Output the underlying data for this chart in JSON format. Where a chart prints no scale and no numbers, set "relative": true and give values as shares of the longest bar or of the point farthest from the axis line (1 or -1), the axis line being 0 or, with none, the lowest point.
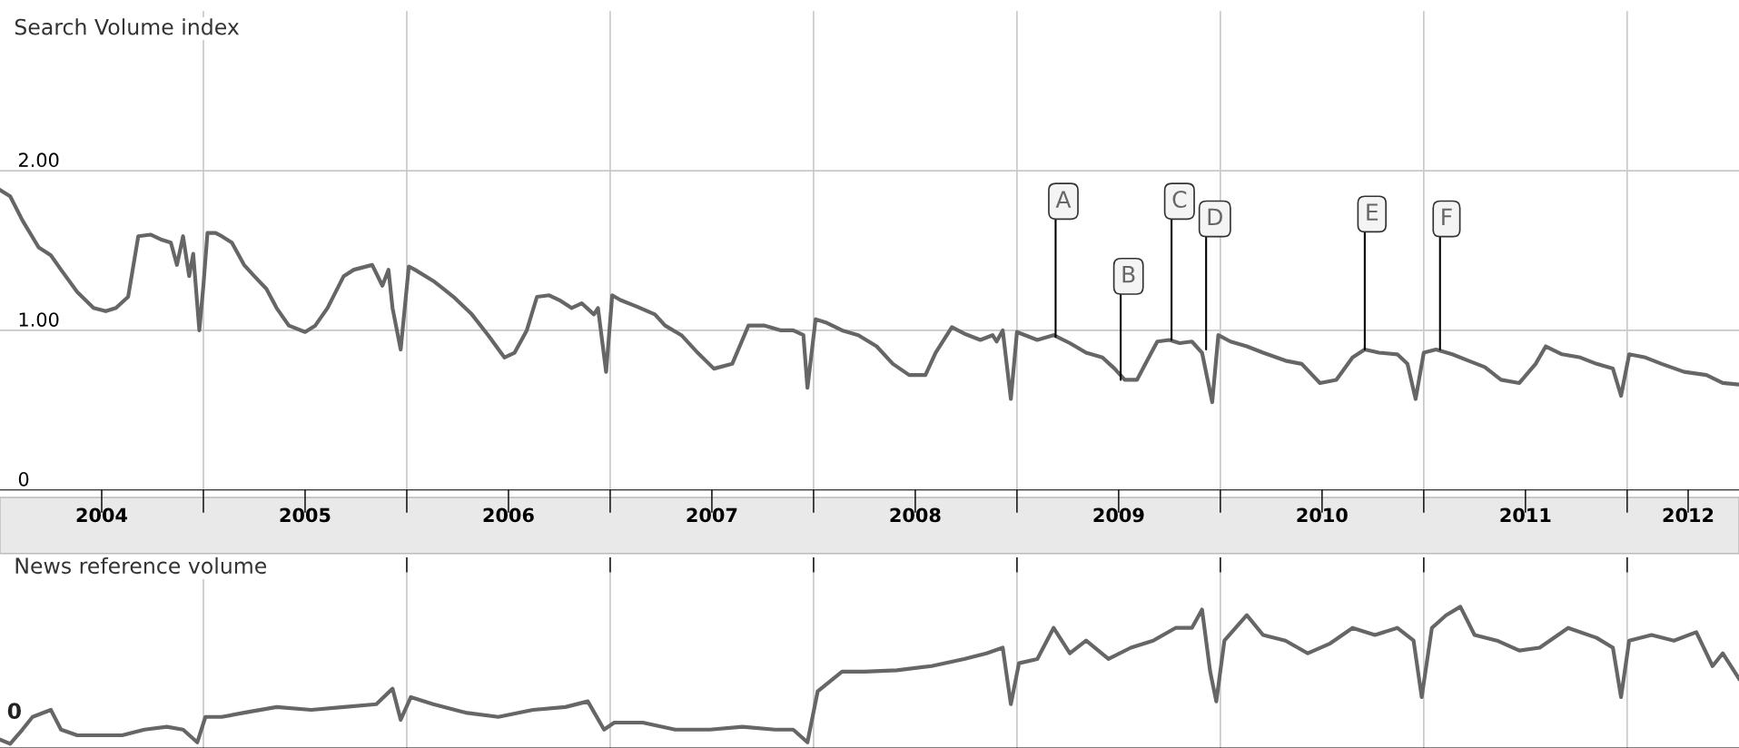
{
  "chart_data": [
    {
      "type": "line",
      "ylabel": "Search Volume index",
      "xlim": [
        2004,
        2012.55
      ],
      "ylim": [
        0,
        3.0
      ],
      "yticks": [
        0,
        {
          "value": 1,
          "label": "1.00"
        },
        {
          "value": 2,
          "label": "2.00"
        }
      ],
      "xticks": [
        {
          "value": 2004.5,
          "label": "2004"
        },
        {
          "value": 2005,
          "label": null
        },
        {
          "value": 2005.5,
          "label": "2005"
        },
        {
          "value": 2006,
          "label": null
        },
        {
          "value": 2006.5,
          "label": "2006"
        },
        {
          "value": 2007,
          "label": null
        },
        {
          "value": 2007.5,
          "label": "2007"
        },
        {
          "value": 2008,
          "label": null
        },
        {
          "value": 2008.5,
          "label": "2008"
        },
        {
          "value": 2009,
          "label": null
        },
        {
          "value": 2009.5,
          "label": "2009"
        },
        {
          "value": 2010,
          "label": null
        },
        {
          "value": 2010.5,
          "label": "2010"
        },
        {
          "value": 2011,
          "label": null
        },
        {
          "value": 2011.5,
          "label": "2011"
        },
        {
          "value": 2012,
          "label": null
        },
        {
          "value": 2012.3,
          "label": "2012"
        }
      ],
      "grid": true,
      "legend": false,
      "marker": "none",
      "line_style": "solid",
      "annotations": [
        {
          "text": "A",
          "x": 2009.19,
          "y": 0.96
        },
        {
          "text": "B",
          "x": 2009.51,
          "y": 0.69
        },
        {
          "text": "C",
          "x": 2009.76,
          "y": 0.94
        },
        {
          "text": "D",
          "x": 2009.93,
          "y": 0.88
        },
        {
          "text": "E",
          "x": 2010.71,
          "y": 0.88
        },
        {
          "text": "F",
          "x": 2011.08,
          "y": 0.88
        }
      ],
      "series": [
        {
          "color": "#666666",
          "x": [
            2004.0,
            2004.05,
            2004.11,
            2004.19,
            2004.25,
            2004.3,
            2004.38,
            2004.46,
            2004.52,
            2004.57,
            2004.63,
            2004.68,
            2004.74,
            2004.79,
            2004.84,
            2004.87,
            2004.9,
            2004.93,
            2004.95,
            2004.98,
            2005.0,
            2005.02,
            2005.06,
            2005.09,
            2005.14,
            2005.2,
            2005.25,
            2005.31,
            2005.36,
            2005.42,
            2005.5,
            2005.55,
            2005.61,
            2005.69,
            2005.74,
            2005.83,
            2005.88,
            2005.91,
            2005.93,
            2005.97,
            2006.01,
            2006.04,
            2006.13,
            2006.18,
            2006.23,
            2006.32,
            2006.4,
            2006.48,
            2006.53,
            2006.59,
            2006.64,
            2006.7,
            2006.75,
            2006.81,
            2006.86,
            2006.92,
            2006.94,
            2006.98,
            2007.01,
            2007.05,
            2007.13,
            2007.22,
            2007.27,
            2007.35,
            2007.43,
            2007.51,
            2007.6,
            2007.68,
            2007.76,
            2007.84,
            2007.9,
            2007.95,
            2007.97,
            2008.01,
            2008.06,
            2008.14,
            2008.22,
            2008.31,
            2008.39,
            2008.47,
            2008.55,
            2008.6,
            2008.68,
            2008.74,
            2008.82,
            2008.88,
            2008.9,
            2008.93,
            2008.97,
            2009.0,
            2009.04,
            2009.1,
            2009.18,
            2009.26,
            2009.34,
            2009.42,
            2009.48,
            2009.53,
            2009.59,
            2009.64,
            2009.69,
            2009.75,
            2009.8,
            2009.86,
            2009.91,
            2009.96,
            2009.99,
            2010.05,
            2010.13,
            2010.21,
            2010.32,
            2010.4,
            2010.49,
            2010.57,
            2010.65,
            2010.71,
            2010.78,
            2010.87,
            2010.92,
            2010.96,
            2011.0,
            2011.06,
            2011.14,
            2011.22,
            2011.3,
            2011.38,
            2011.47,
            2011.55,
            2011.6,
            2011.68,
            2011.77,
            2011.85,
            2011.93,
            2011.97,
            2012.01,
            2012.09,
            2012.17,
            2012.28,
            2012.39,
            2012.47,
            2012.55
          ],
          "values": [
            1.88,
            1.84,
            1.69,
            1.52,
            1.47,
            1.38,
            1.24,
            1.14,
            1.12,
            1.14,
            1.21,
            1.59,
            1.6,
            1.57,
            1.55,
            1.41,
            1.59,
            1.34,
            1.48,
            1.0,
            1.28,
            1.61,
            1.61,
            1.59,
            1.55,
            1.41,
            1.34,
            1.26,
            1.14,
            1.03,
            0.99,
            1.03,
            1.14,
            1.34,
            1.38,
            1.41,
            1.28,
            1.38,
            1.14,
            0.88,
            1.4,
            1.38,
            1.31,
            1.26,
            1.21,
            1.1,
            0.97,
            0.83,
            0.86,
            1.0,
            1.21,
            1.22,
            1.19,
            1.14,
            1.17,
            1.1,
            1.14,
            0.74,
            1.22,
            1.19,
            1.15,
            1.1,
            1.03,
            0.97,
            0.86,
            0.76,
            0.79,
            1.03,
            1.03,
            1.0,
            1.0,
            0.97,
            0.64,
            1.07,
            1.05,
            1.0,
            0.97,
            0.9,
            0.79,
            0.72,
            0.72,
            0.86,
            1.02,
            0.98,
            0.94,
            0.97,
            0.93,
            1.0,
            0.57,
            0.99,
            0.97,
            0.94,
            0.97,
            0.92,
            0.86,
            0.83,
            0.76,
            0.69,
            0.69,
            0.81,
            0.93,
            0.94,
            0.92,
            0.93,
            0.86,
            0.55,
            0.97,
            0.93,
            0.9,
            0.86,
            0.81,
            0.79,
            0.67,
            0.69,
            0.83,
            0.88,
            0.86,
            0.85,
            0.79,
            0.57,
            0.86,
            0.88,
            0.85,
            0.81,
            0.77,
            0.69,
            0.67,
            0.79,
            0.9,
            0.85,
            0.83,
            0.79,
            0.76,
            0.59,
            0.85,
            0.83,
            0.79,
            0.74,
            0.72,
            0.67,
            0.66
          ]
        }
      ]
    },
    {
      "type": "line",
      "ylabel": "News reference volume",
      "relative": true,
      "xlim": [
        2004,
        2012.55
      ],
      "tick_labels": false,
      "xticks": [
        {
          "value": 2005,
          "label": null
        },
        {
          "value": 2006,
          "label": null
        },
        {
          "value": 2007,
          "label": null
        },
        {
          "value": 2008,
          "label": null
        },
        {
          "value": 2009,
          "label": null
        },
        {
          "value": 2010,
          "label": null
        },
        {
          "value": 2011,
          "label": null
        },
        {
          "value": 2012,
          "label": null
        }
      ],
      "grid": "x",
      "legend": false,
      "marker": "none",
      "line_style": "solid",
      "annotations": [
        "0"
      ],
      "series": [
        {
          "color": "#666666",
          "x": [
            2004.0,
            2004.05,
            2004.11,
            2004.16,
            2004.25,
            2004.3,
            2004.38,
            2004.49,
            2004.6,
            2004.71,
            2004.82,
            2004.9,
            2004.97,
            2005.01,
            2005.09,
            2005.2,
            2005.36,
            2005.53,
            2005.69,
            2005.85,
            2005.93,
            2005.97,
            2006.02,
            2006.13,
            2006.29,
            2006.45,
            2006.62,
            2006.78,
            2006.89,
            2006.97,
            2007.02,
            2007.16,
            2007.32,
            2007.49,
            2007.65,
            2007.81,
            2007.9,
            2007.97,
            2008.02,
            2008.14,
            2008.25,
            2008.41,
            2008.58,
            2008.74,
            2008.85,
            2008.93,
            2008.97,
            2009.01,
            2009.1,
            2009.18,
            2009.26,
            2009.34,
            2009.45,
            2009.56,
            2009.67,
            2009.78,
            2009.86,
            2009.91,
            2009.95,
            2009.98,
            2010.02,
            2010.13,
            2010.21,
            2010.32,
            2010.43,
            2010.54,
            2010.65,
            2010.76,
            2010.87,
            2010.95,
            2010.99,
            2011.04,
            2011.11,
            2011.18,
            2011.25,
            2011.36,
            2011.47,
            2011.57,
            2011.71,
            2011.85,
            2011.93,
            2011.97,
            2012.01,
            2012.12,
            2012.23,
            2012.34,
            2012.42,
            2012.47,
            2012.55
          ],
          "values": [
            0.06,
            0.03,
            0.13,
            0.22,
            0.27,
            0.13,
            0.09,
            0.09,
            0.09,
            0.13,
            0.15,
            0.13,
            0.04,
            0.22,
            0.22,
            0.25,
            0.29,
            0.27,
            0.29,
            0.31,
            0.42,
            0.2,
            0.36,
            0.31,
            0.25,
            0.22,
            0.27,
            0.29,
            0.33,
            0.13,
            0.18,
            0.18,
            0.13,
            0.13,
            0.15,
            0.13,
            0.13,
            0.04,
            0.4,
            0.54,
            0.54,
            0.55,
            0.58,
            0.63,
            0.67,
            0.71,
            0.31,
            0.6,
            0.63,
            0.85,
            0.67,
            0.76,
            0.63,
            0.71,
            0.76,
            0.85,
            0.85,
            0.98,
            0.54,
            0.33,
            0.76,
            0.94,
            0.8,
            0.76,
            0.67,
            0.74,
            0.85,
            0.8,
            0.85,
            0.76,
            0.36,
            0.85,
            0.94,
            1.0,
            0.8,
            0.76,
            0.69,
            0.71,
            0.85,
            0.78,
            0.71,
            0.36,
            0.76,
            0.8,
            0.76,
            0.82,
            0.58,
            0.67,
            0.49
          ]
        }
      ]
    }
  ]
}
